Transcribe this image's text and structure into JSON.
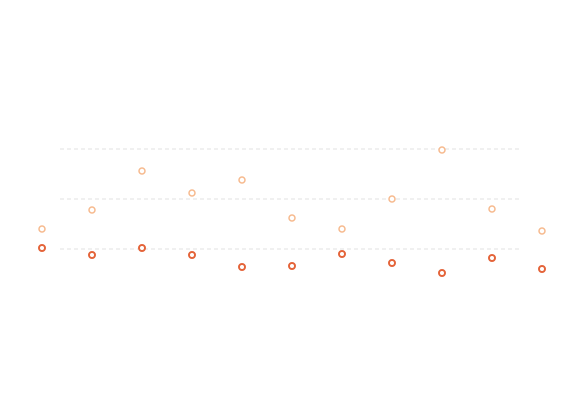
{
  "chart_data": {
    "type": "scatter",
    "categories": [
      null,
      null,
      null,
      null,
      null,
      null,
      null,
      null,
      null,
      null,
      null
    ],
    "series": [
      {
        "color": "#f6b98d",
        "values": [
          20,
          39,
          78,
          56,
          69,
          31,
          20,
          50,
          99,
          40,
          18
        ]
      },
      {
        "color": "#e4643a",
        "values": [
          1,
          -6,
          1,
          -6,
          -18,
          -17,
          -5,
          -14,
          -24,
          -9,
          -20
        ]
      }
    ],
    "ylim": [
      -50,
      150
    ],
    "yticks": [
      0,
      50,
      100
    ],
    "grid": true
  }
}
